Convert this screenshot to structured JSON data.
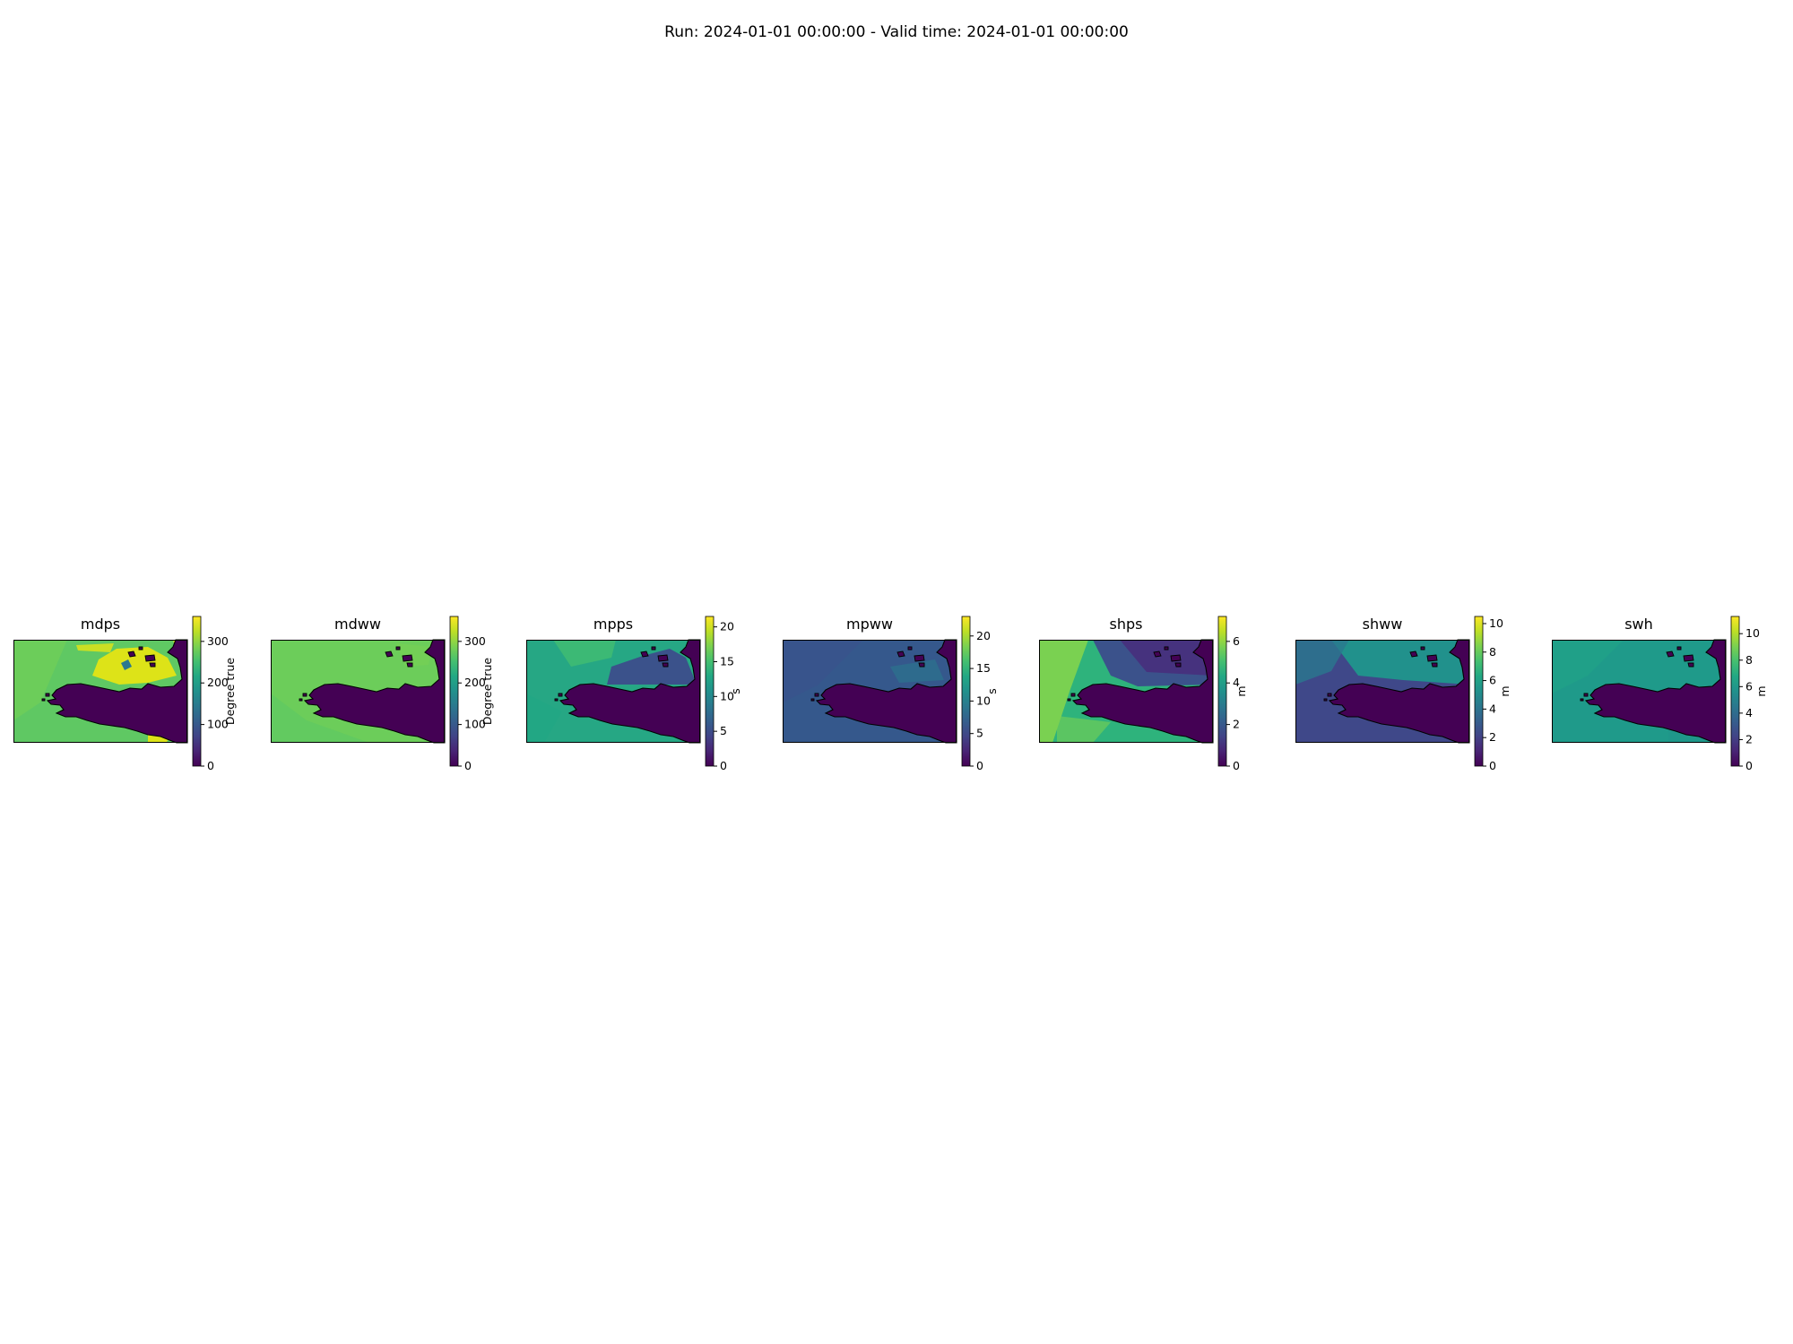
{
  "figure": {
    "suptitle": "Run: 2024-01-01 00:00:00 - Valid time: 2024-01-01 00:00:00",
    "colormap": "viridis",
    "coastline_color": "#000000",
    "land_value_color": "#440154"
  },
  "panels": [
    {
      "id": "mdps",
      "title": "mdps",
      "unit": "Degree true",
      "vmin": 0,
      "vmax": 360,
      "ticks": [
        0,
        100,
        200,
        300
      ],
      "sea_value": 0.74,
      "field_variant": "mdps",
      "colors": {
        "dominant": "#5fc863",
        "high": "#dde318",
        "land": "#440154"
      }
    },
    {
      "id": "mdww",
      "title": "mdww",
      "unit": "Degree true",
      "vmin": 0,
      "vmax": 360,
      "ticks": [
        0,
        100,
        200,
        300
      ],
      "sea_value": 0.76,
      "field_variant": "mdww",
      "colors": {
        "dominant": "#6ccd5a",
        "land": "#440154"
      }
    },
    {
      "id": "mpps",
      "title": "mpps",
      "unit": "s",
      "vmin": 0,
      "vmax": 21.5,
      "ticks": [
        0,
        5,
        10,
        15,
        20
      ],
      "sea_value": 0.56,
      "field_variant": "mpps",
      "colors": {
        "dominant": "#26a784",
        "low": "#3b528b",
        "land": "#440154"
      }
    },
    {
      "id": "mpww",
      "title": "mpww",
      "unit": "s",
      "vmin": 0,
      "vmax": 23,
      "ticks": [
        0,
        5,
        10,
        15,
        20
      ],
      "sea_value": 0.32,
      "field_variant": "mpww",
      "colors": {
        "dominant": "#35588c",
        "land": "#440154"
      }
    },
    {
      "id": "shps",
      "title": "shps",
      "unit": "m",
      "vmin": 0,
      "vmax": 7.2,
      "ticks": [
        0,
        2,
        4,
        6
      ],
      "sea_value": 0.58,
      "field_variant": "shps",
      "colors": {
        "dominant": "#2eb37c",
        "high": "#7ad151",
        "low": "#46327e",
        "land": "#440154"
      }
    },
    {
      "id": "shww",
      "title": "shww",
      "unit": "m",
      "vmin": 0,
      "vmax": 10.5,
      "ticks": [
        0,
        2,
        4,
        6,
        8,
        10
      ],
      "sea_value": 0.35,
      "field_variant": "shww",
      "colors": {
        "dominant": "#3f4889",
        "high": "#21918c",
        "land": "#440154"
      }
    },
    {
      "id": "swh",
      "title": "swh",
      "unit": "m",
      "vmin": 0,
      "vmax": 11.3,
      "ticks": [
        0,
        2,
        4,
        6,
        8,
        10
      ],
      "sea_value": 0.52,
      "field_variant": "swh",
      "colors": {
        "dominant": "#1f9a8a",
        "land": "#440154"
      }
    }
  ]
}
